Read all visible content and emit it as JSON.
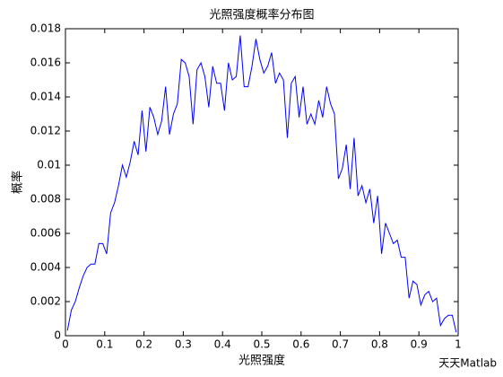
{
  "chart_data": {
    "type": "line",
    "title": "光照强度概率分布图",
    "xlabel": "光照强度",
    "ylabel": "概率",
    "watermark": "天天Matlab",
    "x": [
      0.005,
      0.015,
      0.025,
      0.035,
      0.045,
      0.055,
      0.065,
      0.075,
      0.085,
      0.095,
      0.105,
      0.115,
      0.125,
      0.135,
      0.145,
      0.155,
      0.165,
      0.175,
      0.185,
      0.195,
      0.205,
      0.215,
      0.225,
      0.235,
      0.245,
      0.255,
      0.265,
      0.275,
      0.285,
      0.295,
      0.305,
      0.315,
      0.325,
      0.335,
      0.345,
      0.355,
      0.365,
      0.375,
      0.385,
      0.395,
      0.405,
      0.415,
      0.425,
      0.435,
      0.445,
      0.455,
      0.465,
      0.475,
      0.485,
      0.495,
      0.505,
      0.515,
      0.525,
      0.535,
      0.545,
      0.555,
      0.565,
      0.575,
      0.585,
      0.595,
      0.605,
      0.615,
      0.625,
      0.635,
      0.645,
      0.655,
      0.665,
      0.675,
      0.685,
      0.695,
      0.705,
      0.715,
      0.725,
      0.735,
      0.745,
      0.755,
      0.765,
      0.775,
      0.785,
      0.795,
      0.805,
      0.815,
      0.825,
      0.835,
      0.845,
      0.855,
      0.865,
      0.875,
      0.885,
      0.895,
      0.905,
      0.915,
      0.925,
      0.935,
      0.945,
      0.955,
      0.965,
      0.975,
      0.985,
      0.995
    ],
    "series": [
      {
        "color": "#0000ff",
        "values": [
          0.0003,
          0.0015,
          0.002,
          0.0028,
          0.0035,
          0.004,
          0.0042,
          0.0042,
          0.0054,
          0.0054,
          0.0048,
          0.0072,
          0.0078,
          0.0088,
          0.01,
          0.0093,
          0.0102,
          0.0114,
          0.0106,
          0.0132,
          0.0108,
          0.0134,
          0.0128,
          0.0118,
          0.0126,
          0.0146,
          0.0118,
          0.013,
          0.0136,
          0.0162,
          0.016,
          0.0152,
          0.0124,
          0.0156,
          0.016,
          0.0152,
          0.0134,
          0.0158,
          0.0148,
          0.0148,
          0.0132,
          0.016,
          0.015,
          0.0152,
          0.0176,
          0.0146,
          0.0146,
          0.0158,
          0.0174,
          0.0162,
          0.0154,
          0.0158,
          0.0166,
          0.0148,
          0.0154,
          0.015,
          0.0116,
          0.0148,
          0.0152,
          0.0128,
          0.0146,
          0.0124,
          0.013,
          0.0124,
          0.0138,
          0.0128,
          0.0146,
          0.0136,
          0.013,
          0.0092,
          0.0098,
          0.0112,
          0.0086,
          0.0116,
          0.0082,
          0.0088,
          0.0078,
          0.0086,
          0.0066,
          0.0082,
          0.0048,
          0.0066,
          0.006,
          0.0054,
          0.0056,
          0.0046,
          0.0046,
          0.0022,
          0.0032,
          0.003,
          0.0018,
          0.0024,
          0.0026,
          0.002,
          0.0022,
          0.0006,
          0.001,
          0.0012,
          0.0012,
          0.0002
        ]
      }
    ],
    "xlim": [
      0,
      1
    ],
    "xticks": [
      0,
      0.1,
      0.2,
      0.3,
      0.4,
      0.5,
      0.6,
      0.7,
      0.8,
      0.9,
      1
    ],
    "ylim": [
      0,
      0.018
    ],
    "yticks": [
      0,
      0.002,
      0.004,
      0.006,
      0.008,
      0.01,
      0.012,
      0.014,
      0.016,
      0.018
    ]
  }
}
